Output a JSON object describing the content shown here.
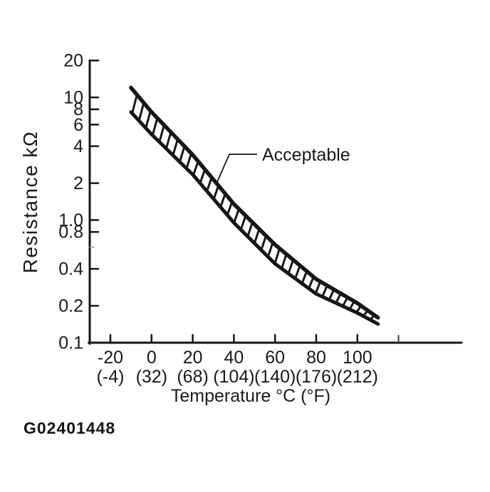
{
  "figure_id": "G02401448",
  "chart_data": {
    "type": "area",
    "title": "",
    "xlabel": "Temperature °C (°F)",
    "ylabel": "Resistance kΩ",
    "annotation_label": "Acceptable",
    "x_axis": {
      "scale": "linear",
      "unit": "°C (°F)",
      "ticks": [
        {
          "c": -20,
          "c_label": "-20",
          "f_label": "(-4)"
        },
        {
          "c": 0,
          "c_label": "0",
          "f_label": "(32)"
        },
        {
          "c": 20,
          "c_label": "20",
          "f_label": "(68)"
        },
        {
          "c": 40,
          "c_label": "40",
          "f_label": "(104)"
        },
        {
          "c": 60,
          "c_label": "60",
          "f_label": "(140)"
        },
        {
          "c": 80,
          "c_label": "80",
          "f_label": "(176)"
        },
        {
          "c": 100,
          "c_label": "100",
          "f_label": "(212)"
        }
      ],
      "unlabeled_ticks_c": [
        120
      ]
    },
    "y_axis": {
      "scale": "log",
      "unit": "kΩ",
      "range": [
        0.1,
        20
      ],
      "ticks": [
        {
          "v": 20,
          "label": "20"
        },
        {
          "v": 10,
          "label": "10"
        },
        {
          "v": 8,
          "label": "8"
        },
        {
          "v": 6,
          "label": "6"
        },
        {
          "v": 4,
          "label": "4"
        },
        {
          "v": 2,
          "label": "2"
        },
        {
          "v": 1.0,
          "label": "1.0"
        },
        {
          "v": 0.8,
          "label": "0.8"
        },
        {
          "v": 0.4,
          "label": "0.4"
        },
        {
          "v": 0.2,
          "label": "0.2"
        },
        {
          "v": 0.1,
          "label": "0.1"
        }
      ],
      "unlabeled_ticks": [
        0.6
      ]
    },
    "band": {
      "name": "Acceptable",
      "style": "hatched-band",
      "temperature_c": [
        -10,
        0,
        20,
        40,
        60,
        80,
        100,
        110
      ],
      "upper_kohm": [
        12.0,
        7.6,
        3.4,
        1.35,
        0.63,
        0.33,
        0.21,
        0.16
      ],
      "lower_kohm": [
        7.6,
        5.0,
        2.35,
        0.95,
        0.44,
        0.25,
        0.175,
        0.142
      ]
    },
    "colors": {
      "ink": "#161616",
      "background": "#ffffff"
    }
  }
}
